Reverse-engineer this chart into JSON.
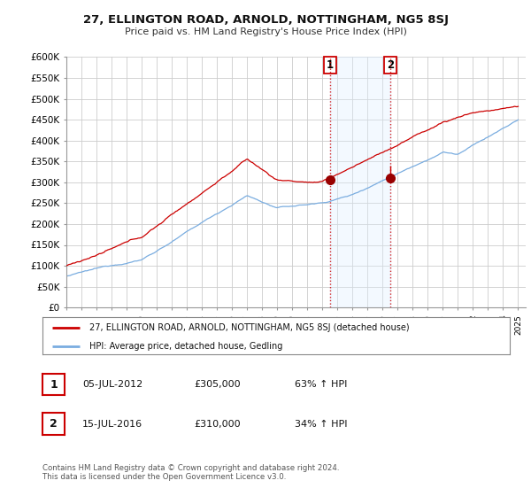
{
  "title": "27, ELLINGTON ROAD, ARNOLD, NOTTINGHAM, NG5 8SJ",
  "subtitle": "Price paid vs. HM Land Registry's House Price Index (HPI)",
  "background_color": "#ffffff",
  "plot_bg_color": "#ffffff",
  "grid_color": "#cccccc",
  "y_ticks": [
    0,
    50000,
    100000,
    150000,
    200000,
    250000,
    300000,
    350000,
    400000,
    450000,
    500000,
    550000,
    600000
  ],
  "y_tick_labels": [
    "£0",
    "£50K",
    "£100K",
    "£150K",
    "£200K",
    "£250K",
    "£300K",
    "£350K",
    "£400K",
    "£450K",
    "£500K",
    "£550K",
    "£600K"
  ],
  "x_start_year": 1995,
  "x_end_year": 2025,
  "sale1_date": 2012.52,
  "sale1_price": 305000,
  "sale1_label": "1",
  "sale2_date": 2016.53,
  "sale2_price": 310000,
  "sale2_label": "2",
  "red_line_color": "#cc0000",
  "blue_line_color": "#7aade0",
  "highlight_color": "#ddeeff",
  "sale_marker_color": "#990000",
  "legend_entry1": "27, ELLINGTON ROAD, ARNOLD, NOTTINGHAM, NG5 8SJ (detached house)",
  "legend_entry2": "HPI: Average price, detached house, Gedling",
  "table_row1_num": "1",
  "table_row1_date": "05-JUL-2012",
  "table_row1_price": "£305,000",
  "table_row1_hpi": "63% ↑ HPI",
  "table_row2_num": "2",
  "table_row2_date": "15-JUL-2016",
  "table_row2_price": "£310,000",
  "table_row2_hpi": "34% ↑ HPI",
  "footer": "Contains HM Land Registry data © Crown copyright and database right 2024.\nThis data is licensed under the Open Government Licence v3.0."
}
